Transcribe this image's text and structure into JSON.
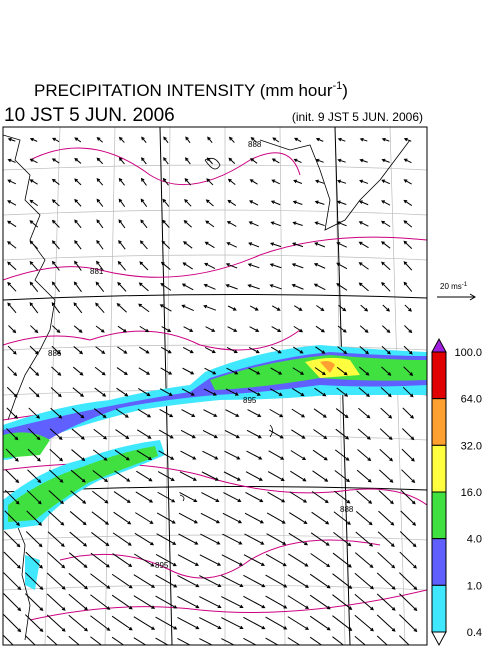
{
  "header": {
    "title": "PRECIPITATION INTENSITY (mm hour",
    "title_sup": "-1",
    "title_end": ")",
    "time": "10 JST 5 JUN. 2006",
    "init": "(init. 9 JST 5 JUN. 2006)"
  },
  "reference_vector": {
    "label": "20 ms",
    "label_sup": "-1"
  },
  "colorbar": {
    "levels": [
      "100.0",
      "64.0",
      "32.0",
      "16.0",
      "4.0",
      "1.0",
      "0.4"
    ],
    "colors": [
      "#a020e0",
      "#e00000",
      "#ffa030",
      "#ffff40",
      "#40e040",
      "#6060ff",
      "#40e8ff",
      "#ffffff"
    ]
  },
  "contour_labels": [
    "888",
    "881",
    "886",
    "895",
    "888",
    "895"
  ]
}
